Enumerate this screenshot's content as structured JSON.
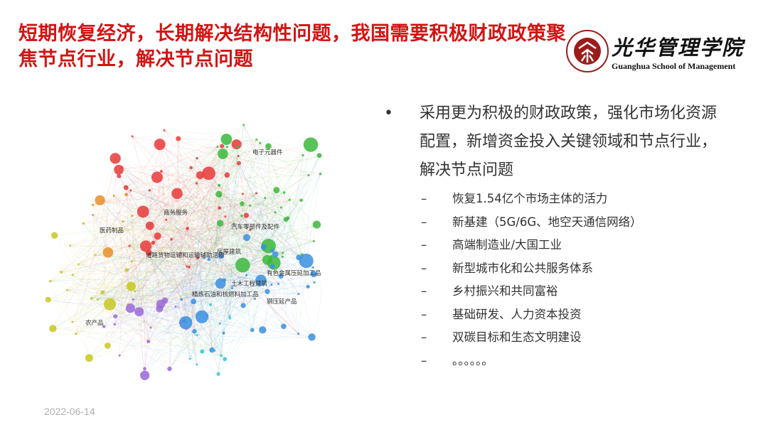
{
  "slide": {
    "title": "短期恢复经济，长期解决结构性问题，我国需要积极财政政策聚焦节点行业，解决节点问题",
    "date": "2022-06-14"
  },
  "logo": {
    "chinese": "光华管理学院",
    "english": "Guanghua School of Management",
    "seal_text": "PEKING UNIVERSITY 1898"
  },
  "content": {
    "bullet_symbol": "•",
    "main_point": "采用更为积极的财政政策，强化市场化资源配置，新增资金投入关键领域和节点行业，解决节点问题",
    "dash_symbol": "–",
    "sub_points": [
      "恢复1.54亿个市场主体的活力",
      "新基建（5G/6G、地空天通信网络）",
      "高端制造业/大国工业",
      "新型城市化和公共服务体系",
      "乡村振兴和共同富裕",
      "基础研发、人力资本投资",
      "双碳目标和生态文明建设",
      "。。。。。。"
    ]
  },
  "network": {
    "cluster_colors": {
      "red": "#e83a3a",
      "green": "#3cb83c",
      "blue": "#3a8fe0",
      "yellow": "#c8c820",
      "purple": "#9a6ad8",
      "cyan": "#30c8d8",
      "orange": "#e8902a"
    },
    "labels": [
      "商务服务",
      "道路货物运输和运输辅助活动",
      "房屋建筑",
      "土木工程建筑",
      "农产品",
      "汽车零部件及配件",
      "有色金属压延加工品",
      "精炼石油和核燃料加工品",
      "钢压延产品",
      "医药制品",
      "电子元器件"
    ]
  }
}
